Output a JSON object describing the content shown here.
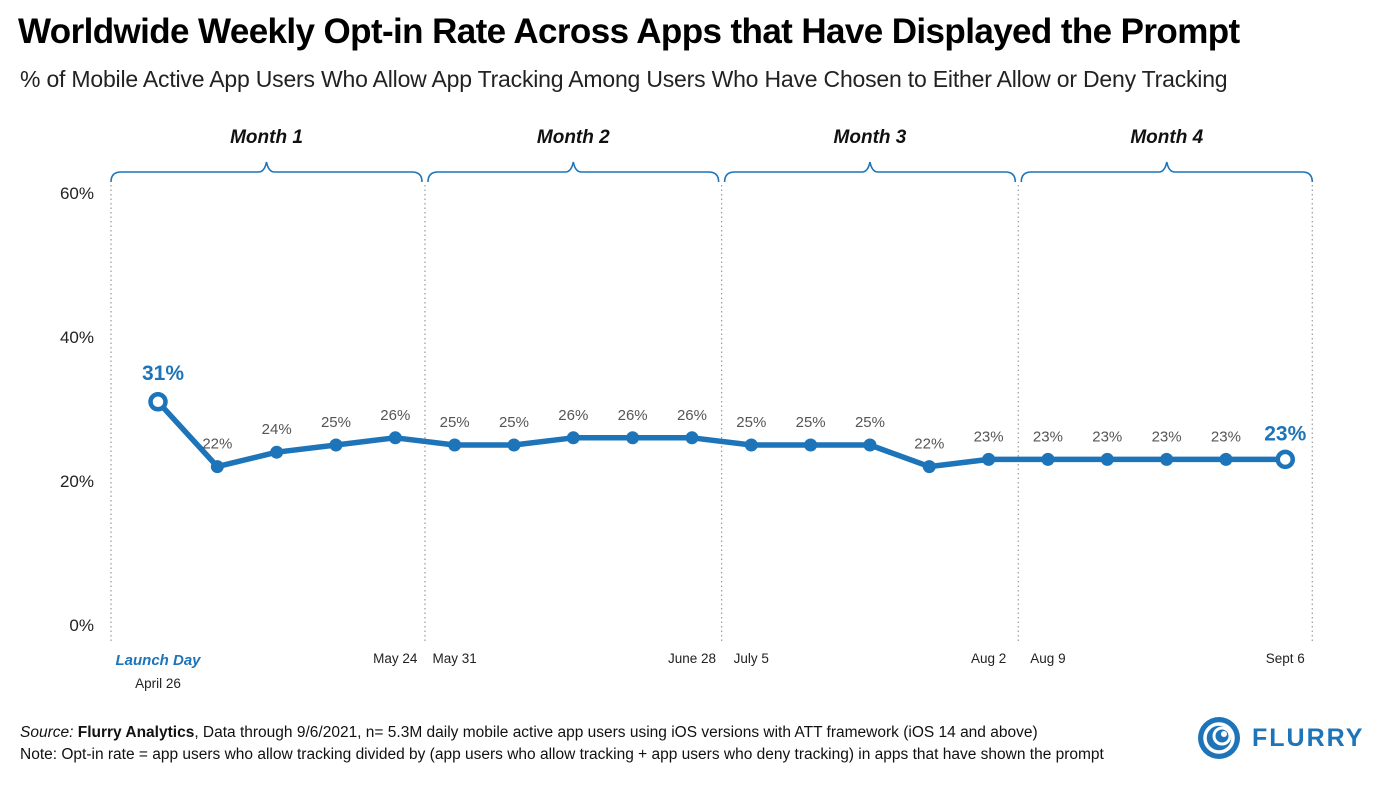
{
  "title": "Worldwide Weekly Opt-in Rate Across Apps that Have Displayed the Prompt",
  "subtitle": "% of Mobile Active App Users Who Allow App Tracking Among Users Who Have Chosen to Either Allow or Deny Tracking",
  "footer": {
    "source_prefix": "Source:",
    "source_name": "Flurry Analytics",
    "source_rest": ", Data through 9/6/2021, n= 5.3M daily mobile active app users using iOS versions with ATT framework (iOS 14 and above)",
    "note": "Note: Opt-in rate = app users who allow tracking divided by (app users who allow tracking + app users who deny tracking) in apps that have shown the prompt"
  },
  "logo": {
    "text": "FLURRY",
    "icon": "flurry-swirl-icon",
    "color": "#1d74b9"
  },
  "chart_data": {
    "type": "line",
    "y_ticks": [
      "0%",
      "20%",
      "40%",
      "60%"
    ],
    "ylim": [
      0,
      60
    ],
    "grid": false,
    "color": "#1d74b9",
    "series": [
      {
        "values": [
          31,
          22,
          24,
          25,
          26,
          25,
          25,
          26,
          26,
          26,
          25,
          25,
          25,
          22,
          23,
          23,
          23,
          23,
          23,
          23
        ],
        "labels": [
          "31%",
          "22%",
          "24%",
          "25%",
          "26%",
          "25%",
          "25%",
          "26%",
          "26%",
          "26%",
          "25%",
          "25%",
          "25%",
          "22%",
          "23%",
          "23%",
          "23%",
          "23%",
          "23%",
          "23%"
        ]
      }
    ],
    "x_labels": [
      {
        "index": 0,
        "text": "Launch Day",
        "sub": "April 26"
      },
      {
        "index": 4,
        "text": "May 24"
      },
      {
        "index": 5,
        "text": "May 31"
      },
      {
        "index": 9,
        "text": "June 28"
      },
      {
        "index": 10,
        "text": "July 5"
      },
      {
        "index": 14,
        "text": "Aug 2"
      },
      {
        "index": 15,
        "text": "Aug 9"
      },
      {
        "index": 19,
        "text": "Sept 6"
      }
    ],
    "periods": [
      {
        "label": "Month 1",
        "start": 0,
        "end": 4
      },
      {
        "label": "Month 2",
        "start": 5,
        "end": 9
      },
      {
        "label": "Month 3",
        "start": 10,
        "end": 14
      },
      {
        "label": "Month 4",
        "start": 15,
        "end": 19
      }
    ],
    "highlighted_points": [
      0,
      19
    ]
  }
}
